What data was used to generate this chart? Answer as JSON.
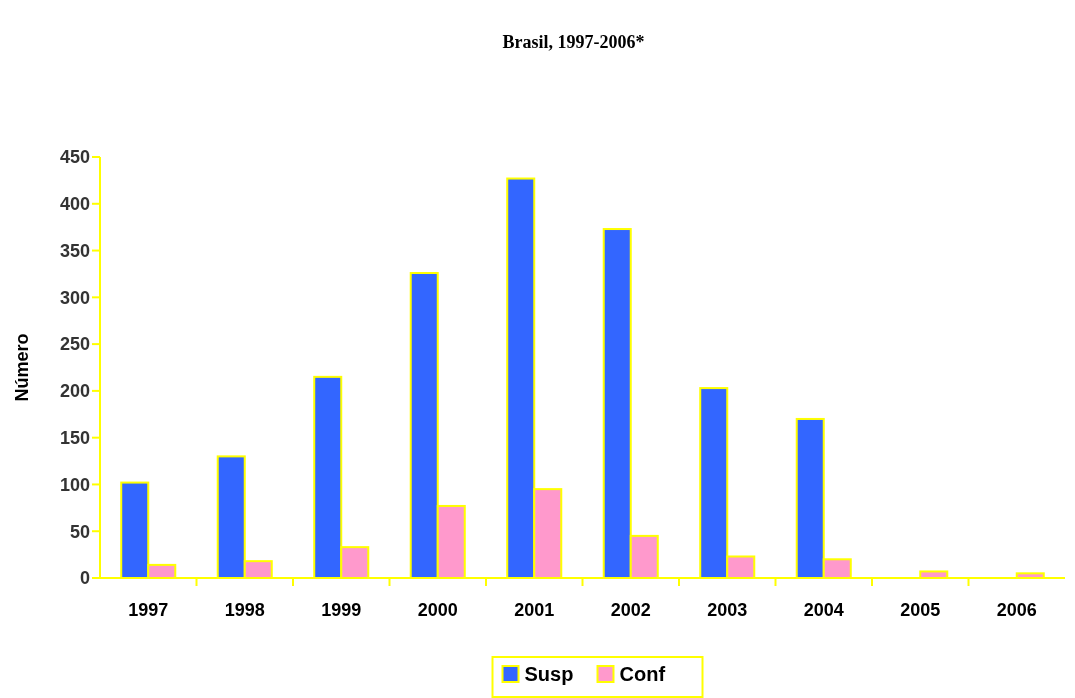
{
  "chart_data": {
    "type": "bar",
    "title": "Brasil, 1997-2006*",
    "ylabel": "Número",
    "categories": [
      "1997",
      "1998",
      "1999",
      "2000",
      "2001",
      "2002",
      "2003",
      "2004",
      "2005",
      "2006"
    ],
    "series": [
      {
        "name": "Susp",
        "color": "#3366ff",
        "values": [
          102,
          130,
          215,
          326,
          427,
          373,
          203,
          170,
          null,
          null
        ]
      },
      {
        "name": "Conf",
        "color": "#ff99cc",
        "values": [
          14,
          18,
          33,
          77,
          95,
          45,
          23,
          20,
          7,
          5
        ]
      }
    ],
    "ylim": [
      0,
      450
    ],
    "yticks": [
      0,
      50,
      100,
      150,
      200,
      250,
      300,
      350,
      400,
      450
    ],
    "grid": false,
    "legend": "bottom"
  }
}
